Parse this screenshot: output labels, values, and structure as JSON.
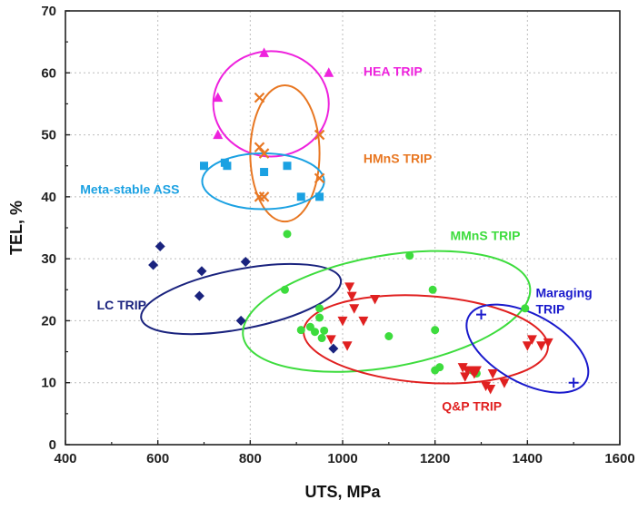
{
  "chart_data": {
    "type": "scatter",
    "title": "",
    "xlabel": "UTS, MPa",
    "ylabel": "TEL, %",
    "xlim": [
      400,
      1600
    ],
    "ylim": [
      0,
      70
    ],
    "xticks": [
      400,
      600,
      800,
      1000,
      1200,
      1400,
      1600
    ],
    "yticks": [
      0,
      10,
      20,
      30,
      40,
      50,
      60,
      70
    ],
    "grid": true,
    "series": [
      {
        "name": "HEA TRIP",
        "color": "#ee22dd",
        "marker": "triangle-up",
        "points": [
          [
            730,
            56
          ],
          [
            730,
            50
          ],
          [
            830,
            63.2
          ],
          [
            970,
            60
          ]
        ],
        "ellipse": {
          "cx": 845,
          "cy": 55,
          "rx": 125,
          "ry": 8.5,
          "angle_deg": 0
        }
      },
      {
        "name": "HMnS TRIP",
        "color": "#e87722",
        "marker": "x",
        "points": [
          [
            820,
            56
          ],
          [
            820,
            48
          ],
          [
            830,
            47
          ],
          [
            820,
            40
          ],
          [
            950,
            50
          ],
          [
            950,
            43
          ],
          [
            830,
            40
          ]
        ],
        "ellipse": {
          "cx": 875,
          "cy": 47,
          "rx": 75,
          "ry": 11,
          "angle_deg": 0
        }
      },
      {
        "name": "Meta-stable ASS",
        "color": "#1ba1e2",
        "marker": "square",
        "points": [
          [
            700,
            45
          ],
          [
            745,
            45.5
          ],
          [
            750,
            45
          ],
          [
            830,
            44
          ],
          [
            880,
            45
          ],
          [
            910,
            40
          ],
          [
            950,
            40
          ]
        ],
        "ellipse": {
          "cx": 828,
          "cy": 42.5,
          "rx": 132,
          "ry": 4.5,
          "angle_deg": 0
        }
      },
      {
        "name": "LC TRIP",
        "color": "#1a237e",
        "marker": "diamond",
        "points": [
          [
            590,
            29
          ],
          [
            605,
            32
          ],
          [
            690,
            24
          ],
          [
            695,
            28
          ],
          [
            780,
            20
          ],
          [
            790,
            29.5
          ],
          [
            980,
            15.5
          ]
        ],
        "ellipse": {
          "cx": 780,
          "cy": 23.5,
          "rx": 220,
          "ry": 4.8,
          "angle_deg": 11
        }
      },
      {
        "name": "MMnS TRIP",
        "color": "#3ddc3d",
        "marker": "circle",
        "points": [
          [
            875,
            25
          ],
          [
            880,
            34
          ],
          [
            910,
            18.5
          ],
          [
            930,
            19
          ],
          [
            940,
            18.2
          ],
          [
            950,
            20.5
          ],
          [
            950,
            22
          ],
          [
            955,
            17.2
          ],
          [
            960,
            18.4
          ],
          [
            1100,
            17.5
          ],
          [
            1145,
            30.5
          ],
          [
            1195,
            25
          ],
          [
            1200,
            12
          ],
          [
            1200,
            18.5
          ],
          [
            1210,
            12.5
          ],
          [
            1395,
            22
          ],
          [
            1280,
            12
          ],
          [
            1290,
            11.5
          ]
        ],
        "ellipse": {
          "cx": 1095,
          "cy": 21.5,
          "rx": 315,
          "ry": 9,
          "angle_deg": 10
        }
      },
      {
        "name": "Q&P TRIP",
        "color": "#e02020",
        "marker": "triangle-down",
        "points": [
          [
            975,
            17
          ],
          [
            1000,
            20
          ],
          [
            1010,
            16
          ],
          [
            1015,
            25.5
          ],
          [
            1020,
            24
          ],
          [
            1025,
            22
          ],
          [
            1045,
            20
          ],
          [
            1070,
            23.5
          ],
          [
            1260,
            12.5
          ],
          [
            1265,
            11
          ],
          [
            1270,
            12
          ],
          [
            1280,
            12
          ],
          [
            1285,
            11.5
          ],
          [
            1290,
            12
          ],
          [
            1310,
            9.5
          ],
          [
            1320,
            9
          ],
          [
            1325,
            11.5
          ],
          [
            1350,
            10
          ],
          [
            1400,
            16
          ],
          [
            1410,
            17
          ],
          [
            1430,
            16
          ],
          [
            1445,
            16.5
          ]
        ],
        "ellipse": {
          "cx": 1180,
          "cy": 17,
          "rx": 265,
          "ry": 7,
          "angle_deg": -4
        }
      },
      {
        "name": "Maraging TRIP",
        "color": "#1a1acc",
        "marker": "plus",
        "points": [
          [
            1300,
            21
          ],
          [
            1500,
            10
          ]
        ],
        "ellipse": {
          "cx": 1400,
          "cy": 15.5,
          "rx": 145,
          "ry": 5.5,
          "angle_deg": -29
        }
      }
    ],
    "group_labels": [
      {
        "text": "HEA TRIP",
        "series": 0,
        "anchor": [
          1045,
          59.5
        ],
        "lines": [
          "HEA TRIP"
        ]
      },
      {
        "text": "HMnS TRIP",
        "series": 1,
        "anchor": [
          1045,
          45.5
        ],
        "lines": [
          "HMnS TRIP"
        ]
      },
      {
        "text": "Meta-stable ASS",
        "series": 2,
        "anchor": [
          432,
          40.5
        ],
        "lines": [
          "Meta-stable ASS"
        ]
      },
      {
        "text": "LC TRIP",
        "series": 3,
        "anchor": [
          468,
          21.8
        ],
        "lines": [
          "LC TRIP"
        ]
      },
      {
        "text": "MMnS TRIP",
        "series": 4,
        "anchor": [
          1233,
          33
        ],
        "lines": [
          "MMnS TRIP"
        ]
      },
      {
        "text": "Q&P TRIP",
        "series": 5,
        "anchor": [
          1215,
          5.5
        ],
        "lines": [
          "Q&P TRIP"
        ]
      },
      {
        "text": "Maraging TRIP",
        "series": 6,
        "anchor": [
          1418,
          23.8
        ],
        "lines": [
          "Maraging",
          "TRIP"
        ]
      }
    ]
  }
}
